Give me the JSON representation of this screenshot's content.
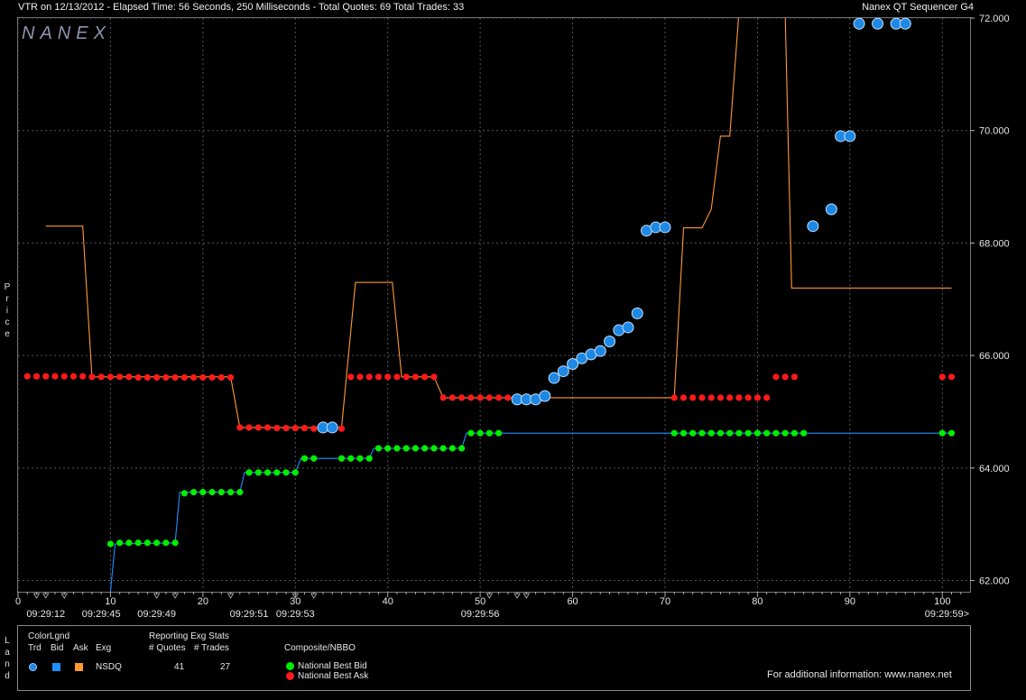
{
  "header": {
    "left": "VTR on 12/13/2012  -  Elapsed Time: 56 Seconds, 250 Milliseconds  -  Total Quotes: 69  Total Trades: 33",
    "right": "Nanex QT Sequencer G4"
  },
  "logo": "NANEX",
  "side_labels": {
    "price": "Price",
    "land": "Land"
  },
  "colors": {
    "background": "#000000",
    "grid": "#555555",
    "trade": "#1e88e5",
    "bid_line": "#1e90ff",
    "ask_line": "#ff9933",
    "nbb": "#00ee00",
    "nbo": "#ff1a1a"
  },
  "legend": {
    "color_legend_title": "ColorLgnd",
    "col_trd": "Trd",
    "col_bid": "Bid",
    "col_ask": "Ask",
    "col_exg": "Exg",
    "exchange": "NSDQ",
    "stats_title": "Reporting Exg Stats",
    "stats_quotes_label": "# Quotes",
    "stats_trades_label": "# Trades",
    "quotes": "41",
    "trades": "27",
    "composite_title": "Composite/NBBO",
    "nbb_label": "National Best Bid",
    "nbo_label": "National Best Ask",
    "info": "For additional information: www.nanex.net"
  },
  "chart_data": {
    "type": "line",
    "title": "",
    "xlabel": "",
    "ylabel": "Price",
    "xlim": [
      0,
      103
    ],
    "ylim": [
      61.8,
      72.0
    ],
    "x_ticks": [
      0,
      10,
      20,
      30,
      40,
      50,
      60,
      70,
      80,
      90,
      100
    ],
    "y_ticks": [
      "62.000",
      "64.000",
      "66.000",
      "68.000",
      "70.000",
      "72.000"
    ],
    "y_tick_values": [
      62,
      64,
      66,
      68,
      70,
      72
    ],
    "time_labels": [
      {
        "x": 3,
        "label": "09:29:12"
      },
      {
        "x": 9,
        "label": "09:29:45"
      },
      {
        "x": 15,
        "label": "09:29:49"
      },
      {
        "x": 25,
        "label": "09:29:51"
      },
      {
        "x": 30,
        "label": "09:29:53"
      },
      {
        "x": 50,
        "label": "09:29:56"
      },
      {
        "x": 100.5,
        "label": "09:29:59>"
      }
    ],
    "grid": true,
    "series": [
      {
        "name": "National Best Bid",
        "style": "dots",
        "points": [
          [
            10,
            62.65
          ],
          [
            11,
            62.67
          ],
          [
            12,
            62.67
          ],
          [
            13,
            62.67
          ],
          [
            14,
            62.67
          ],
          [
            15,
            62.67
          ],
          [
            16,
            62.67
          ],
          [
            17,
            62.67
          ],
          [
            18,
            63.55
          ],
          [
            19,
            63.57
          ],
          [
            20,
            63.57
          ],
          [
            21,
            63.57
          ],
          [
            22,
            63.57
          ],
          [
            23,
            63.57
          ],
          [
            24,
            63.57
          ],
          [
            25,
            63.92
          ],
          [
            26,
            63.92
          ],
          [
            27,
            63.92
          ],
          [
            28,
            63.92
          ],
          [
            29,
            63.92
          ],
          [
            30,
            63.92
          ],
          [
            31,
            64.17
          ],
          [
            32,
            64.17
          ],
          [
            35,
            64.17
          ],
          [
            36,
            64.17
          ],
          [
            37,
            64.17
          ],
          [
            38,
            64.17
          ],
          [
            39,
            64.35
          ],
          [
            40,
            64.35
          ],
          [
            41,
            64.35
          ],
          [
            42,
            64.35
          ],
          [
            43,
            64.35
          ],
          [
            44,
            64.35
          ],
          [
            45,
            64.35
          ],
          [
            46,
            64.35
          ],
          [
            47,
            64.35
          ],
          [
            48,
            64.35
          ],
          [
            49,
            64.62
          ],
          [
            50,
            64.62
          ],
          [
            51,
            64.62
          ],
          [
            52,
            64.62
          ],
          [
            71,
            64.62
          ],
          [
            72,
            64.62
          ],
          [
            73,
            64.62
          ],
          [
            74,
            64.62
          ],
          [
            75,
            64.62
          ],
          [
            76,
            64.62
          ],
          [
            77,
            64.62
          ],
          [
            78,
            64.62
          ],
          [
            79,
            64.62
          ],
          [
            80,
            64.62
          ],
          [
            81,
            64.62
          ],
          [
            82,
            64.62
          ],
          [
            83,
            64.62
          ],
          [
            84,
            64.62
          ],
          [
            85,
            64.62
          ],
          [
            100,
            64.62
          ],
          [
            101,
            64.62
          ]
        ]
      },
      {
        "name": "National Best Ask",
        "style": "dots",
        "points": [
          [
            1,
            65.63
          ],
          [
            2,
            65.63
          ],
          [
            3,
            65.63
          ],
          [
            4,
            65.63
          ],
          [
            5,
            65.63
          ],
          [
            6,
            65.63
          ],
          [
            7,
            65.63
          ],
          [
            8,
            65.62
          ],
          [
            9,
            65.62
          ],
          [
            10,
            65.62
          ],
          [
            11,
            65.62
          ],
          [
            12,
            65.62
          ],
          [
            13,
            65.61
          ],
          [
            14,
            65.61
          ],
          [
            15,
            65.61
          ],
          [
            16,
            65.61
          ],
          [
            17,
            65.61
          ],
          [
            18,
            65.61
          ],
          [
            19,
            65.61
          ],
          [
            20,
            65.61
          ],
          [
            21,
            65.61
          ],
          [
            22,
            65.61
          ],
          [
            23,
            65.61
          ],
          [
            24,
            64.72
          ],
          [
            25,
            64.72
          ],
          [
            26,
            64.72
          ],
          [
            27,
            64.72
          ],
          [
            28,
            64.71
          ],
          [
            29,
            64.71
          ],
          [
            30,
            64.71
          ],
          [
            31,
            64.71
          ],
          [
            32,
            64.7
          ],
          [
            33,
            64.7
          ],
          [
            34,
            64.7
          ],
          [
            35,
            64.7
          ],
          [
            36,
            65.62
          ],
          [
            37,
            65.62
          ],
          [
            38,
            65.62
          ],
          [
            39,
            65.62
          ],
          [
            40,
            65.62
          ],
          [
            41,
            65.62
          ],
          [
            42,
            65.62
          ],
          [
            43,
            65.62
          ],
          [
            44,
            65.62
          ],
          [
            45,
            65.62
          ],
          [
            46,
            65.25
          ],
          [
            47,
            65.25
          ],
          [
            48,
            65.25
          ],
          [
            49,
            65.25
          ],
          [
            50,
            65.25
          ],
          [
            51,
            65.25
          ],
          [
            52,
            65.25
          ],
          [
            53,
            65.25
          ],
          [
            71,
            65.25
          ],
          [
            72,
            65.25
          ],
          [
            73,
            65.25
          ],
          [
            74,
            65.25
          ],
          [
            75,
            65.25
          ],
          [
            76,
            65.25
          ],
          [
            77,
            65.25
          ],
          [
            78,
            65.25
          ],
          [
            79,
            65.25
          ],
          [
            80,
            65.25
          ],
          [
            81,
            65.25
          ],
          [
            82,
            65.62
          ],
          [
            83,
            65.62
          ],
          [
            84,
            65.62
          ],
          [
            100,
            65.62
          ],
          [
            101,
            65.62
          ]
        ]
      },
      {
        "name": "NSDQ Bid",
        "style": "line",
        "points": [
          [
            10,
            61.8
          ],
          [
            10.5,
            62.65
          ],
          [
            17,
            62.67
          ],
          [
            17.5,
            63.57
          ],
          [
            24,
            63.57
          ],
          [
            24.5,
            63.92
          ],
          [
            30,
            63.92
          ],
          [
            30.6,
            64.17
          ],
          [
            38,
            64.17
          ],
          [
            38.5,
            64.35
          ],
          [
            48,
            64.35
          ],
          [
            48.5,
            64.62
          ],
          [
            101,
            64.62
          ]
        ]
      },
      {
        "name": "NSDQ Ask",
        "style": "line",
        "points": [
          [
            3,
            68.3
          ],
          [
            7,
            68.3
          ],
          [
            8,
            65.62
          ],
          [
            23,
            65.62
          ],
          [
            24,
            64.72
          ],
          [
            35,
            64.72
          ],
          [
            36.5,
            67.3
          ],
          [
            40.5,
            67.3
          ],
          [
            41.5,
            65.62
          ],
          [
            45,
            65.62
          ],
          [
            46,
            65.25
          ],
          [
            71,
            65.25
          ],
          [
            72,
            68.27
          ],
          [
            74,
            68.27
          ],
          [
            75,
            68.6
          ],
          [
            76,
            69.9
          ],
          [
            77,
            69.9
          ],
          [
            78,
            72.1
          ],
          [
            83,
            72.1
          ],
          [
            83.7,
            67.2
          ],
          [
            101,
            67.2
          ]
        ]
      },
      {
        "name": "Trades",
        "style": "circles",
        "points": [
          [
            33,
            64.72
          ],
          [
            34,
            64.72
          ],
          [
            54,
            65.22
          ],
          [
            55,
            65.22
          ],
          [
            56,
            65.22
          ],
          [
            57,
            65.28
          ],
          [
            58,
            65.6
          ],
          [
            59,
            65.72
          ],
          [
            60,
            65.85
          ],
          [
            61,
            65.95
          ],
          [
            62,
            66.02
          ],
          [
            63,
            66.08
          ],
          [
            64,
            66.25
          ],
          [
            65,
            66.45
          ],
          [
            66,
            66.5
          ],
          [
            67,
            66.75
          ],
          [
            68,
            68.22
          ],
          [
            69,
            68.28
          ],
          [
            70,
            68.28
          ],
          [
            86,
            68.3
          ],
          [
            88,
            68.6
          ],
          [
            89,
            69.9
          ],
          [
            90,
            69.9
          ],
          [
            91,
            71.9
          ],
          [
            93,
            71.9
          ],
          [
            95,
            71.9
          ],
          [
            96,
            71.9
          ]
        ]
      }
    ]
  }
}
